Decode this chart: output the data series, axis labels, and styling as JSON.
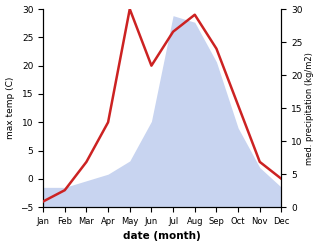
{
  "months": [
    "Jan",
    "Feb",
    "Mar",
    "Apr",
    "May",
    "Jun",
    "Jul",
    "Aug",
    "Sep",
    "Oct",
    "Nov",
    "Dec"
  ],
  "temp": [
    -4,
    -2,
    3,
    10,
    30,
    20,
    26,
    29,
    23,
    13,
    3,
    0
  ],
  "precip": [
    3,
    3,
    4,
    5,
    7,
    13,
    29,
    28,
    22,
    12,
    6,
    3
  ],
  "temp_color": "#cc2222",
  "precip_fill_color": "#c8d4f0",
  "temp_ylim": [
    -5,
    30
  ],
  "precip_ylim": [
    0,
    30
  ],
  "xlabel": "date (month)",
  "ylabel_left": "max temp (C)",
  "ylabel_right": "med. precipitation (kg/m2)",
  "background_color": "#ffffff",
  "axes_background": "#ffffff",
  "figsize": [
    3.2,
    2.47
  ],
  "dpi": 100
}
